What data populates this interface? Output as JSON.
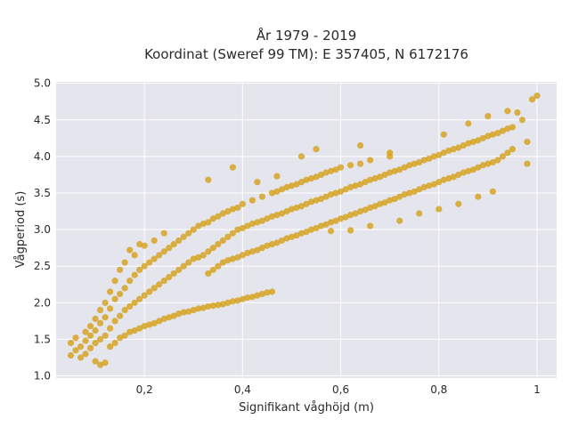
{
  "chart_data": {
    "type": "scatter",
    "title_line1": "År 1979 - 2019",
    "title_line2": "Koordinat (Sweref 99 TM): E 357405, N 6172176",
    "xlabel": "Signifikant våghöjd (m)",
    "ylabel": "Vågperiod (s)",
    "xlim": [
      0.02,
      1.04
    ],
    "ylim": [
      0.97,
      5.02
    ],
    "x_ticks": [
      {
        "value": 0.2,
        "label": "0,2"
      },
      {
        "value": 0.4,
        "label": "0,4"
      },
      {
        "value": 0.6,
        "label": "0,6"
      },
      {
        "value": 0.8,
        "label": "0,8"
      },
      {
        "value": 1.0,
        "label": "1"
      }
    ],
    "y_ticks": [
      {
        "value": 1.0,
        "label": "1.0"
      },
      {
        "value": 1.5,
        "label": "1.5"
      },
      {
        "value": 2.0,
        "label": "2.0"
      },
      {
        "value": 2.5,
        "label": "2.5"
      },
      {
        "value": 3.0,
        "label": "3.0"
      },
      {
        "value": 3.5,
        "label": "3.5"
      },
      {
        "value": 4.0,
        "label": "4.0"
      },
      {
        "value": 4.5,
        "label": "4.5"
      },
      {
        "value": 5.0,
        "label": "5.0"
      }
    ],
    "grid": true,
    "legend": false,
    "colors": {
      "point": "#d4a017",
      "plot_background": "#e5e5ee",
      "grid": "#ffffff"
    },
    "series": [
      {
        "points": [
          [
            0.05,
            1.28
          ],
          [
            0.05,
            1.45
          ],
          [
            0.06,
            1.35
          ],
          [
            0.06,
            1.52
          ],
          [
            0.07,
            1.25
          ],
          [
            0.07,
            1.4
          ],
          [
            0.08,
            1.3
          ],
          [
            0.08,
            1.48
          ],
          [
            0.08,
            1.6
          ],
          [
            0.09,
            1.38
          ],
          [
            0.09,
            1.55
          ],
          [
            0.09,
            1.68
          ],
          [
            0.1,
            1.2
          ],
          [
            0.1,
            1.45
          ],
          [
            0.1,
            1.62
          ],
          [
            0.1,
            1.78
          ],
          [
            0.11,
            1.15
          ],
          [
            0.11,
            1.5
          ],
          [
            0.11,
            1.72
          ],
          [
            0.11,
            1.9
          ],
          [
            0.12,
            1.18
          ],
          [
            0.12,
            1.55
          ],
          [
            0.12,
            1.8
          ],
          [
            0.12,
            2.0
          ],
          [
            0.13,
            1.4
          ],
          [
            0.13,
            1.65
          ],
          [
            0.13,
            1.92
          ],
          [
            0.13,
            2.15
          ],
          [
            0.14,
            1.45
          ],
          [
            0.14,
            1.75
          ],
          [
            0.14,
            2.05
          ],
          [
            0.14,
            2.3
          ],
          [
            0.15,
            1.52
          ],
          [
            0.15,
            1.82
          ],
          [
            0.15,
            2.12
          ],
          [
            0.15,
            2.45
          ],
          [
            0.16,
            1.55
          ],
          [
            0.16,
            1.9
          ],
          [
            0.16,
            2.2
          ],
          [
            0.16,
            2.55
          ],
          [
            0.17,
            1.6
          ],
          [
            0.17,
            1.95
          ],
          [
            0.17,
            2.3
          ],
          [
            0.17,
            2.72
          ],
          [
            0.18,
            1.62
          ],
          [
            0.18,
            2.0
          ],
          [
            0.18,
            2.38
          ],
          [
            0.18,
            2.65
          ],
          [
            0.19,
            1.65
          ],
          [
            0.19,
            2.05
          ],
          [
            0.19,
            2.45
          ],
          [
            0.19,
            2.8
          ],
          [
            0.2,
            1.68
          ],
          [
            0.2,
            2.1
          ],
          [
            0.2,
            2.5
          ],
          [
            0.2,
            2.78
          ],
          [
            0.21,
            1.7
          ],
          [
            0.21,
            2.15
          ],
          [
            0.21,
            2.55
          ],
          [
            0.22,
            1.72
          ],
          [
            0.22,
            2.2
          ],
          [
            0.22,
            2.6
          ],
          [
            0.22,
            2.85
          ],
          [
            0.23,
            1.75
          ],
          [
            0.23,
            2.25
          ],
          [
            0.23,
            2.65
          ],
          [
            0.24,
            1.78
          ],
          [
            0.24,
            2.3
          ],
          [
            0.24,
            2.7
          ],
          [
            0.24,
            2.95
          ],
          [
            0.25,
            1.8
          ],
          [
            0.25,
            2.35
          ],
          [
            0.25,
            2.75
          ],
          [
            0.26,
            1.82
          ],
          [
            0.26,
            2.4
          ],
          [
            0.26,
            2.8
          ],
          [
            0.27,
            1.85
          ],
          [
            0.27,
            2.45
          ],
          [
            0.27,
            2.85
          ],
          [
            0.28,
            1.87
          ],
          [
            0.28,
            2.5
          ],
          [
            0.28,
            2.9
          ],
          [
            0.29,
            1.88
          ],
          [
            0.29,
            2.55
          ],
          [
            0.29,
            2.95
          ],
          [
            0.3,
            1.9
          ],
          [
            0.3,
            2.6
          ],
          [
            0.3,
            3.0
          ],
          [
            0.31,
            1.92
          ],
          [
            0.31,
            2.62
          ],
          [
            0.31,
            3.05
          ],
          [
            0.32,
            1.93
          ],
          [
            0.32,
            2.65
          ],
          [
            0.32,
            3.08
          ],
          [
            0.33,
            1.95
          ],
          [
            0.33,
            2.4
          ],
          [
            0.33,
            2.7
          ],
          [
            0.33,
            3.1
          ],
          [
            0.34,
            1.96
          ],
          [
            0.34,
            2.45
          ],
          [
            0.34,
            2.75
          ],
          [
            0.34,
            3.15
          ],
          [
            0.35,
            1.97
          ],
          [
            0.35,
            2.5
          ],
          [
            0.35,
            2.8
          ],
          [
            0.35,
            3.18
          ],
          [
            0.36,
            1.98
          ],
          [
            0.36,
            2.55
          ],
          [
            0.36,
            2.85
          ],
          [
            0.36,
            3.22
          ],
          [
            0.37,
            2.0
          ],
          [
            0.37,
            2.58
          ],
          [
            0.37,
            2.9
          ],
          [
            0.37,
            3.25
          ],
          [
            0.38,
            2.02
          ],
          [
            0.38,
            2.6
          ],
          [
            0.38,
            2.95
          ],
          [
            0.38,
            3.28
          ],
          [
            0.39,
            2.03
          ],
          [
            0.39,
            2.62
          ],
          [
            0.39,
            3.0
          ],
          [
            0.39,
            3.3
          ],
          [
            0.4,
            2.05
          ],
          [
            0.4,
            2.65
          ],
          [
            0.4,
            3.02
          ],
          [
            0.4,
            3.35
          ],
          [
            0.41,
            2.07
          ],
          [
            0.41,
            2.68
          ],
          [
            0.41,
            3.05
          ],
          [
            0.42,
            2.08
          ],
          [
            0.42,
            2.7
          ],
          [
            0.42,
            3.08
          ],
          [
            0.42,
            3.4
          ],
          [
            0.43,
            2.1
          ],
          [
            0.43,
            2.72
          ],
          [
            0.43,
            3.1
          ],
          [
            0.44,
            2.12
          ],
          [
            0.44,
            2.75
          ],
          [
            0.44,
            3.12
          ],
          [
            0.44,
            3.45
          ],
          [
            0.45,
            2.14
          ],
          [
            0.45,
            2.78
          ],
          [
            0.45,
            3.15
          ],
          [
            0.46,
            2.15
          ],
          [
            0.46,
            2.8
          ],
          [
            0.46,
            3.18
          ],
          [
            0.46,
            3.5
          ],
          [
            0.47,
            2.82
          ],
          [
            0.47,
            3.2
          ],
          [
            0.47,
            3.52
          ],
          [
            0.48,
            2.85
          ],
          [
            0.48,
            3.22
          ],
          [
            0.48,
            3.55
          ],
          [
            0.49,
            2.88
          ],
          [
            0.49,
            3.25
          ],
          [
            0.49,
            3.58
          ],
          [
            0.5,
            2.9
          ],
          [
            0.5,
            3.28
          ],
          [
            0.5,
            3.6
          ],
          [
            0.51,
            2.92
          ],
          [
            0.51,
            3.3
          ],
          [
            0.51,
            3.62
          ],
          [
            0.52,
            2.95
          ],
          [
            0.52,
            3.32
          ],
          [
            0.52,
            3.65
          ],
          [
            0.53,
            2.97
          ],
          [
            0.53,
            3.35
          ],
          [
            0.53,
            3.68
          ],
          [
            0.54,
            3.0
          ],
          [
            0.54,
            3.38
          ],
          [
            0.54,
            3.7
          ],
          [
            0.55,
            3.02
          ],
          [
            0.55,
            3.4
          ],
          [
            0.55,
            3.72
          ],
          [
            0.56,
            3.05
          ],
          [
            0.56,
            3.42
          ],
          [
            0.56,
            3.75
          ],
          [
            0.57,
            3.07
          ],
          [
            0.57,
            3.45
          ],
          [
            0.57,
            3.78
          ],
          [
            0.58,
            3.1
          ],
          [
            0.58,
            3.48
          ],
          [
            0.58,
            3.8
          ],
          [
            0.59,
            3.12
          ],
          [
            0.59,
            3.5
          ],
          [
            0.59,
            3.82
          ],
          [
            0.6,
            3.15
          ],
          [
            0.6,
            3.52
          ],
          [
            0.6,
            3.85
          ],
          [
            0.61,
            3.17
          ],
          [
            0.61,
            3.55
          ],
          [
            0.62,
            3.2
          ],
          [
            0.62,
            3.58
          ],
          [
            0.62,
            3.88
          ],
          [
            0.63,
            3.22
          ],
          [
            0.63,
            3.6
          ],
          [
            0.64,
            3.25
          ],
          [
            0.64,
            3.62
          ],
          [
            0.64,
            3.9
          ],
          [
            0.65,
            3.27
          ],
          [
            0.65,
            3.65
          ],
          [
            0.66,
            3.3
          ],
          [
            0.66,
            3.68
          ],
          [
            0.66,
            3.95
          ],
          [
            0.67,
            3.32
          ],
          [
            0.67,
            3.7
          ],
          [
            0.68,
            3.35
          ],
          [
            0.68,
            3.72
          ],
          [
            0.69,
            3.37
          ],
          [
            0.69,
            3.75
          ],
          [
            0.7,
            3.4
          ],
          [
            0.7,
            3.78
          ],
          [
            0.7,
            4.0
          ],
          [
            0.71,
            3.42
          ],
          [
            0.71,
            3.8
          ],
          [
            0.72,
            3.45
          ],
          [
            0.72,
            3.82
          ],
          [
            0.73,
            3.48
          ],
          [
            0.73,
            3.85
          ],
          [
            0.74,
            3.5
          ],
          [
            0.74,
            3.88
          ],
          [
            0.75,
            3.52
          ],
          [
            0.75,
            3.9
          ],
          [
            0.76,
            3.55
          ],
          [
            0.76,
            3.92
          ],
          [
            0.77,
            3.58
          ],
          [
            0.77,
            3.95
          ],
          [
            0.78,
            3.6
          ],
          [
            0.78,
            3.97
          ],
          [
            0.79,
            3.62
          ],
          [
            0.79,
            4.0
          ],
          [
            0.8,
            3.65
          ],
          [
            0.8,
            4.02
          ],
          [
            0.81,
            3.68
          ],
          [
            0.81,
            4.05
          ],
          [
            0.82,
            3.7
          ],
          [
            0.82,
            4.08
          ],
          [
            0.83,
            3.72
          ],
          [
            0.83,
            4.1
          ],
          [
            0.84,
            3.75
          ],
          [
            0.84,
            4.12
          ],
          [
            0.85,
            3.78
          ],
          [
            0.85,
            4.15
          ],
          [
            0.86,
            3.8
          ],
          [
            0.86,
            4.18
          ],
          [
            0.87,
            3.82
          ],
          [
            0.87,
            4.2
          ],
          [
            0.88,
            3.85
          ],
          [
            0.88,
            4.22
          ],
          [
            0.89,
            3.88
          ],
          [
            0.89,
            4.25
          ],
          [
            0.9,
            3.9
          ],
          [
            0.9,
            4.28
          ],
          [
            0.91,
            3.92
          ],
          [
            0.91,
            4.3
          ],
          [
            0.92,
            3.95
          ],
          [
            0.92,
            4.32
          ],
          [
            0.93,
            4.0
          ],
          [
            0.93,
            4.35
          ],
          [
            0.94,
            4.05
          ],
          [
            0.94,
            4.38
          ],
          [
            0.95,
            4.1
          ],
          [
            0.95,
            4.4
          ],
          [
            0.96,
            4.6
          ],
          [
            0.97,
            4.5
          ],
          [
            0.98,
            4.2
          ],
          [
            0.98,
            3.9
          ],
          [
            0.99,
            4.78
          ],
          [
            1.0,
            4.83
          ],
          [
            0.33,
            3.68
          ],
          [
            0.38,
            3.85
          ],
          [
            0.52,
            4.0
          ],
          [
            0.47,
            3.73
          ],
          [
            0.43,
            3.65
          ],
          [
            0.58,
            2.98
          ],
          [
            0.62,
            2.99
          ],
          [
            0.66,
            3.05
          ],
          [
            0.72,
            3.12
          ],
          [
            0.76,
            3.22
          ],
          [
            0.8,
            3.28
          ],
          [
            0.84,
            3.35
          ],
          [
            0.88,
            3.45
          ],
          [
            0.91,
            3.52
          ],
          [
            0.55,
            4.1
          ],
          [
            0.64,
            4.15
          ],
          [
            0.7,
            4.05
          ],
          [
            0.81,
            4.3
          ],
          [
            0.86,
            4.45
          ],
          [
            0.9,
            4.55
          ],
          [
            0.94,
            4.62
          ]
        ]
      }
    ]
  }
}
